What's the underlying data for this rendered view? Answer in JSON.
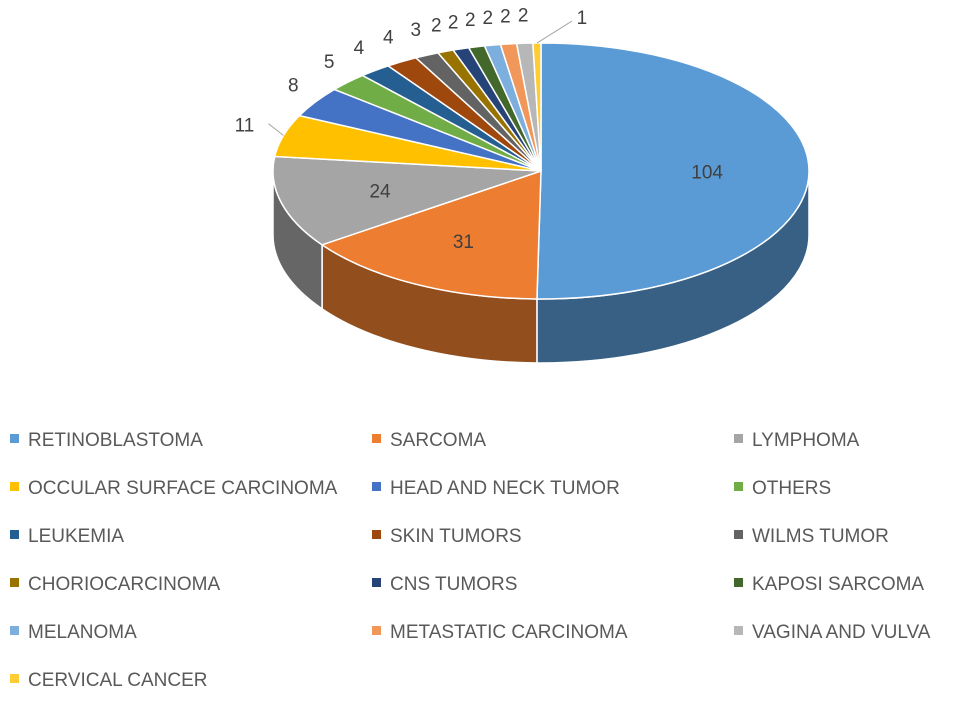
{
  "chart_data": {
    "type": "pie",
    "style": "3d",
    "title": "",
    "categories": [
      "RETINOBLASTOMA",
      "SARCOMA",
      "LYMPHOMA",
      "OCCULAR SURFACE CARCINOMA",
      "HEAD AND NECK TUMOR",
      "OTHERS",
      "LEUKEMIA",
      "SKIN TUMORS",
      "WILMS TUMOR",
      "CHORIOCARCINOMA",
      "CNS TUMORS",
      "KAPOSI SARCOMA",
      "MELANOMA",
      "METASTATIC CARCINOMA",
      "VAGINA AND VULVA",
      "CERVICAL CANCER"
    ],
    "values": [
      104,
      31,
      24,
      11,
      8,
      5,
      4,
      4,
      3,
      2,
      2,
      2,
      2,
      2,
      2,
      1
    ],
    "colors": [
      "#5b9bd5",
      "#ed7d31",
      "#a5a5a5",
      "#ffc000",
      "#4472c4",
      "#70ad47",
      "#255e91",
      "#9e480e",
      "#636363",
      "#997300",
      "#264478",
      "#43682b",
      "#7cafdd",
      "#f1975a",
      "#b7b7b7",
      "#ffcd33"
    ],
    "legend_position": "bottom",
    "data_labels": "outside"
  }
}
